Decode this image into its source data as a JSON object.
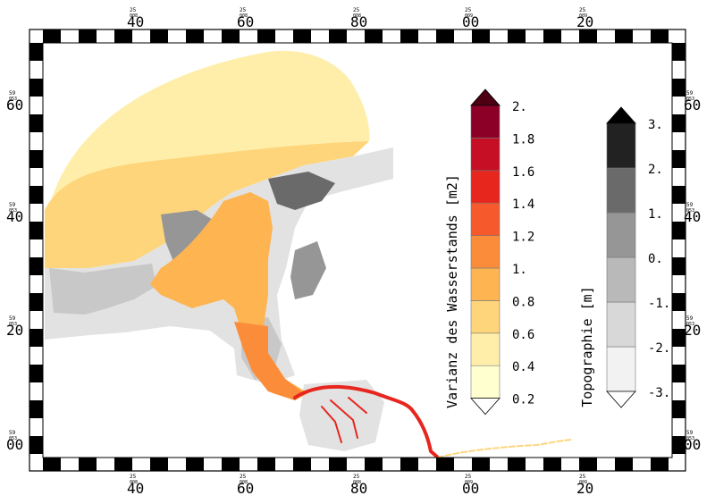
{
  "frame": {
    "top_ticks": [
      {
        "sup": "25",
        "sub": "008",
        "main": "40"
      },
      {
        "sup": "25",
        "sub": "008",
        "main": "60"
      },
      {
        "sup": "25",
        "sub": "008",
        "main": "80"
      },
      {
        "sup": "25",
        "sub": "009",
        "main": "00"
      },
      {
        "sup": "25",
        "sub": "009",
        "main": "20"
      }
    ],
    "bottom_ticks": [
      {
        "sup": "25",
        "sub": "008",
        "main": "40"
      },
      {
        "sup": "25",
        "sub": "008",
        "main": "60"
      },
      {
        "sup": "25",
        "sub": "008",
        "main": "80"
      },
      {
        "sup": "25",
        "sub": "009",
        "main": "00"
      },
      {
        "sup": "25",
        "sub": "009",
        "main": "20"
      }
    ],
    "left_ticks": [
      {
        "sup": "59",
        "sub": "053",
        "main": "60"
      },
      {
        "sup": "59",
        "sub": "053",
        "main": "40"
      },
      {
        "sup": "59",
        "sub": "053",
        "main": "20"
      },
      {
        "sup": "59",
        "sub": "053",
        "main": "00"
      }
    ],
    "right_ticks": [
      {
        "sup": "59",
        "sub": "053",
        "main": "60"
      },
      {
        "sup": "59",
        "sub": "053",
        "main": "40"
      },
      {
        "sup": "59",
        "sub": "053",
        "main": "20"
      },
      {
        "sup": "59",
        "sub": "053",
        "main": "00"
      }
    ]
  },
  "legend_variance": {
    "title": "Varianz des Wasserstands [m2]",
    "labels": [
      "2.",
      "1.8",
      "1.6",
      "1.4",
      "1.2",
      "1.",
      "0.8",
      "0.6",
      "0.4",
      "0.2"
    ],
    "colors": [
      "#ffffd0",
      "#ffeeaa",
      "#fed57a",
      "#fdb451",
      "#fb8c3a",
      "#f65a2c",
      "#e7261e",
      "#c60f25",
      "#8c0028"
    ],
    "over_color": "#4d0012",
    "under_color": "#ffffff"
  },
  "legend_topo": {
    "title": "Topographie [m]",
    "labels": [
      "3.",
      "2.",
      "1.",
      "0.",
      "-1.",
      "-2.",
      "-3."
    ],
    "colors": [
      "#f2f2f2",
      "#d8d8d8",
      "#b9b9b9",
      "#969696",
      "#6a6a6a",
      "#222222"
    ],
    "over_color": "#000000",
    "under_color": "#ffffff"
  },
  "map_colors": {
    "sea_light": "#ffeeaa",
    "sea_mid": "#fed57a",
    "channel": "#fdb451",
    "channel_strong": "#fb8c3a",
    "river": "#e7261e",
    "river_light": "#fed57a",
    "flat_dark": "#6a6a6a",
    "flat_mid": "#969696",
    "flat_light": "#c8c8c8",
    "flat_pale": "#e2e2e2"
  }
}
